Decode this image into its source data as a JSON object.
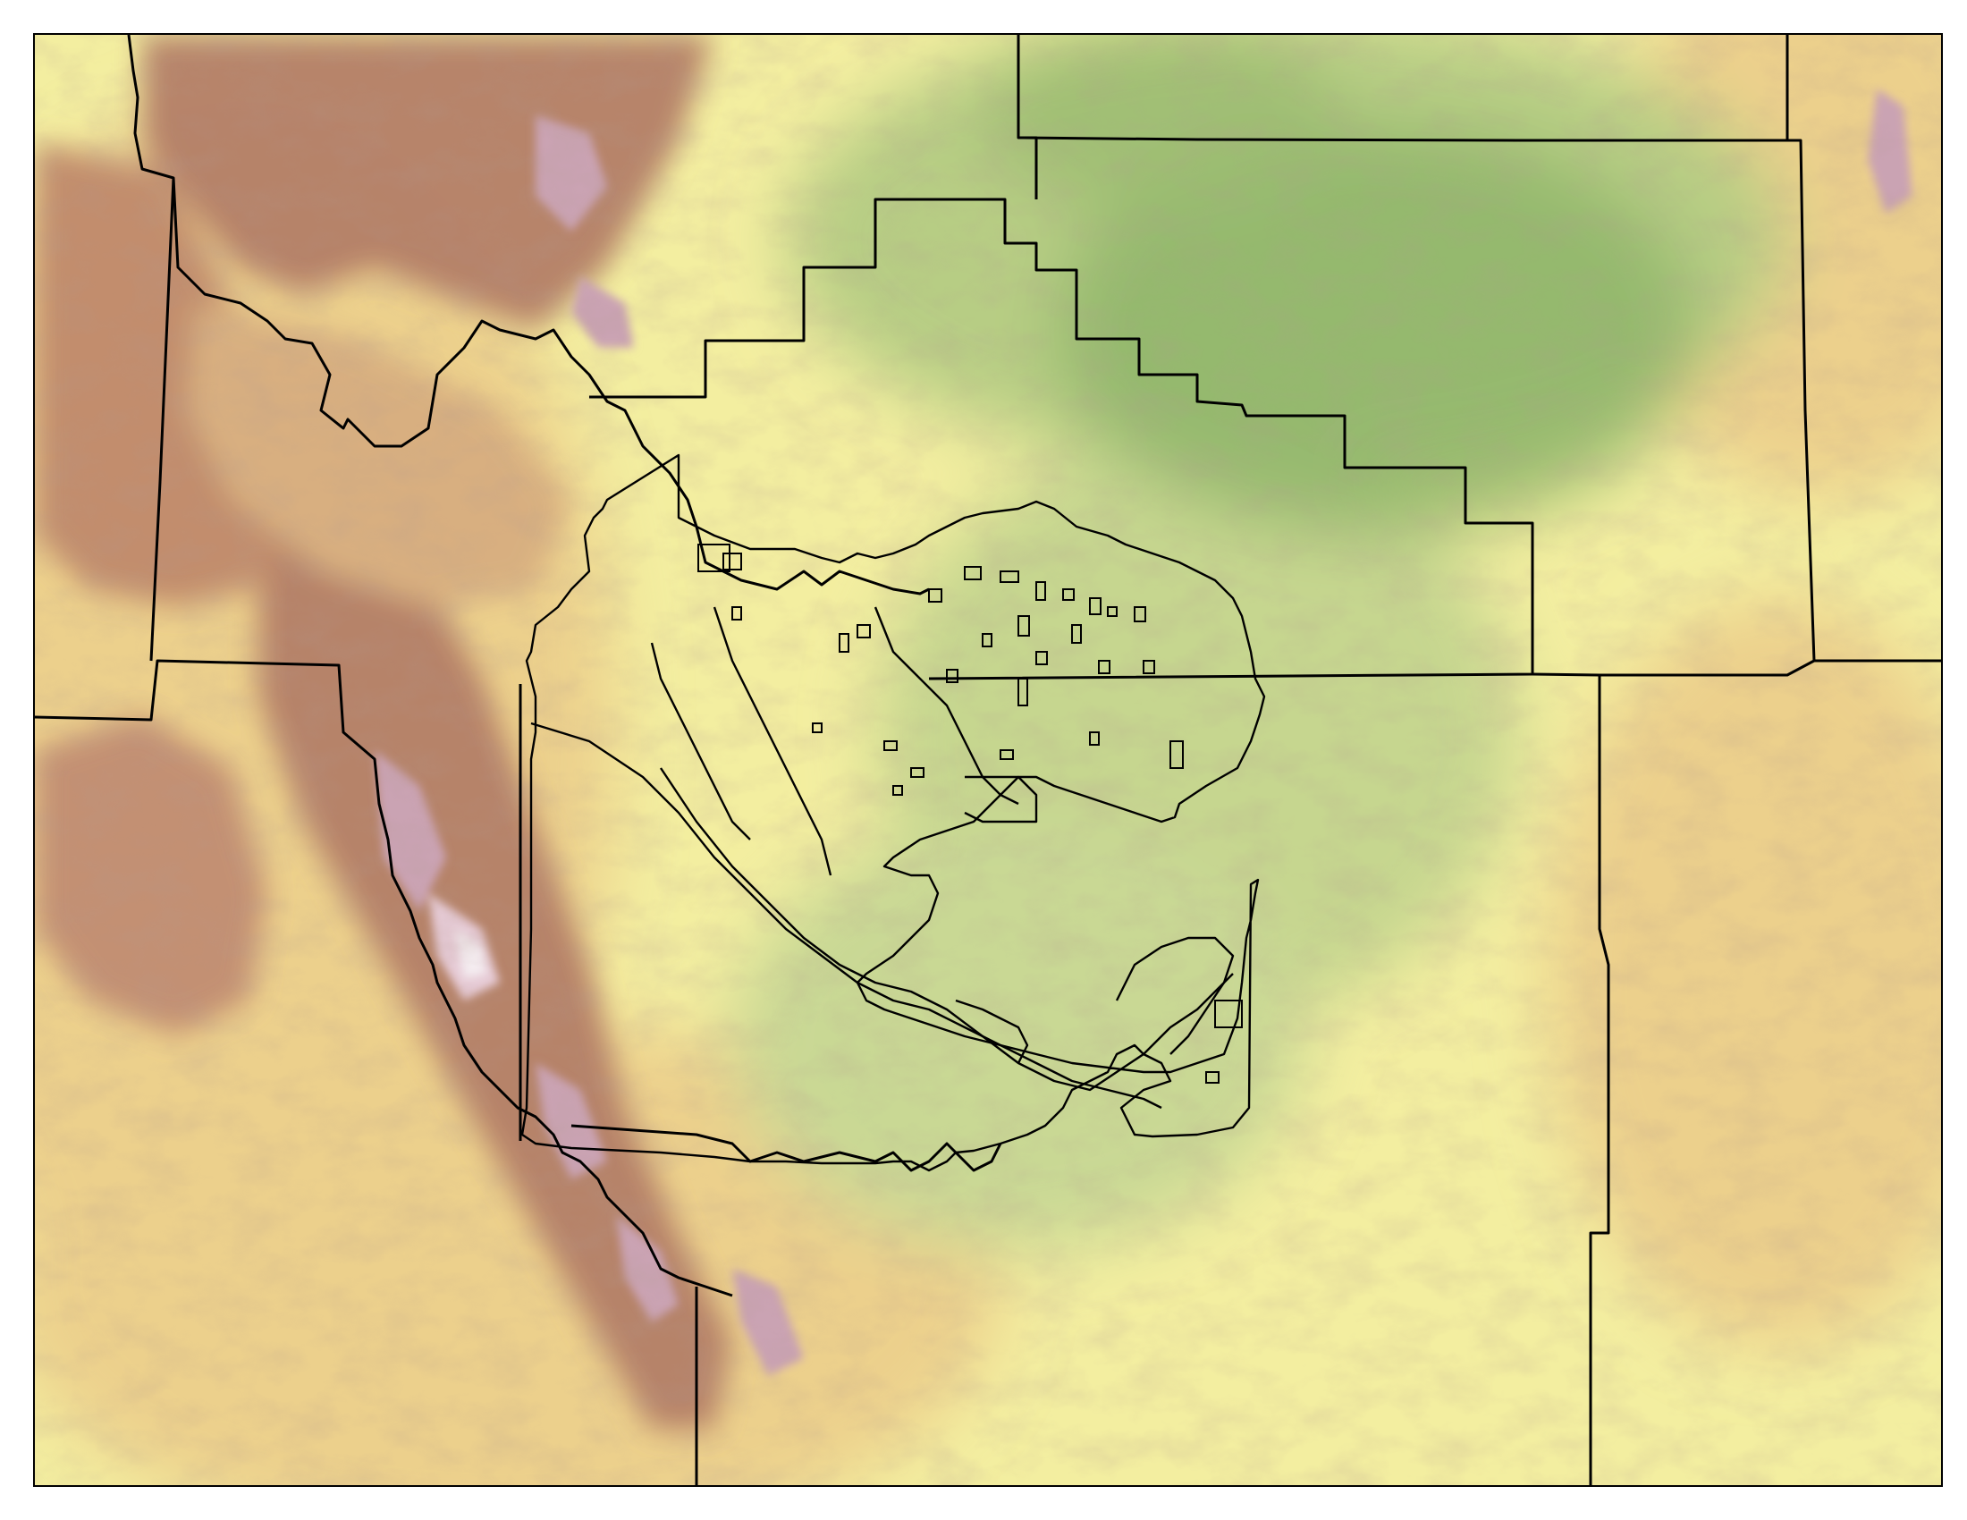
{
  "map": {
    "colors": {
      "lowland_green": "#8fb56a",
      "plain_green": "#b7cd84",
      "plain_yellow": "#f3eea0",
      "upland_tan": "#ecd08c",
      "ridge_brown": "#b47f67",
      "peak_mauve": "#caa3b3",
      "peak_white": "#f4ecf0",
      "boundary": "#000000",
      "frame": "#000000"
    },
    "layers": [
      "elevation-relief",
      "county-boundaries",
      "study-area-boundary"
    ],
    "legend": null
  }
}
